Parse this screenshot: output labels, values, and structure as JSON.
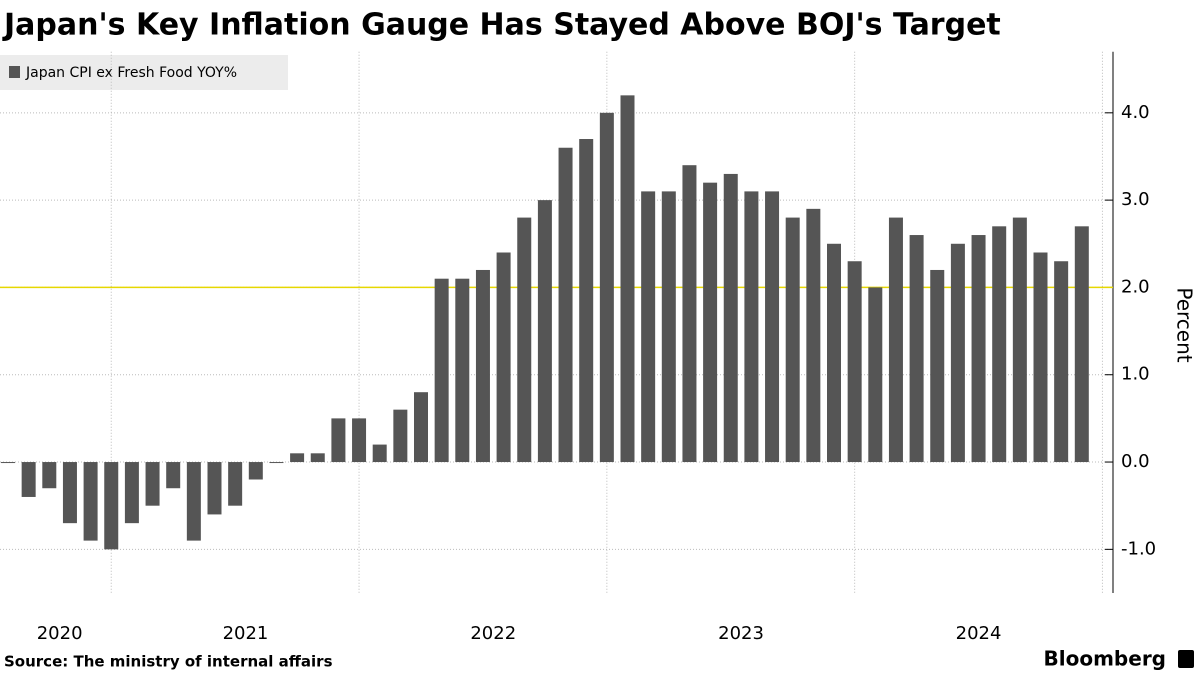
{
  "chart_data": {
    "type": "bar",
    "title": "Japan's Key Inflation Gauge Has Stayed Above BOJ's Target",
    "source": "Source: The ministry of internal affairs",
    "brand": "Bloomberg",
    "y_label": "Percent",
    "categories": [
      "2020",
      null,
      null,
      null,
      null,
      null,
      "2021",
      null,
      null,
      null,
      null,
      null,
      null,
      null,
      null,
      null,
      null,
      null,
      "2022",
      null,
      null,
      null,
      null,
      null,
      null,
      null,
      null,
      null,
      null,
      null,
      "2023",
      null,
      null,
      null,
      null,
      null,
      null,
      null,
      null,
      null,
      null,
      null,
      "2024",
      null,
      null,
      null,
      null,
      null,
      null,
      null,
      null,
      null,
      null
    ],
    "series": [
      {
        "name": "Japan CPI ex Fresh Food YOY%",
        "color": "#555555",
        "values": [
          0.0,
          -0.4,
          -0.3,
          -0.7,
          -0.9,
          -1.0,
          -0.7,
          -0.5,
          -0.3,
          -0.9,
          -0.6,
          -0.5,
          -0.2,
          0.0,
          0.1,
          0.1,
          0.5,
          0.5,
          0.2,
          0.6,
          0.8,
          2.1,
          2.1,
          2.2,
          2.4,
          2.8,
          3.0,
          3.6,
          3.7,
          4.0,
          4.2,
          3.1,
          3.1,
          3.4,
          3.2,
          3.3,
          3.1,
          3.1,
          2.8,
          2.9,
          2.5,
          2.3,
          2.0,
          2.8,
          2.6,
          2.2,
          2.5,
          2.6,
          2.7,
          2.8,
          2.4,
          2.3,
          2.7
        ]
      }
    ],
    "target_line": {
      "value": 2,
      "color": "#e6d800"
    },
    "ylim": [
      -1.5,
      4.7
    ],
    "yticks": [
      {
        "value": -1,
        "label": "-1.0"
      },
      {
        "value": 0,
        "label": "0.0"
      },
      {
        "value": 1,
        "label": "1.0"
      },
      {
        "value": 2,
        "label": "2.0"
      },
      {
        "value": 3,
        "label": "3.0"
      },
      {
        "value": 4,
        "label": "4.0"
      }
    ],
    "grid": true
  }
}
